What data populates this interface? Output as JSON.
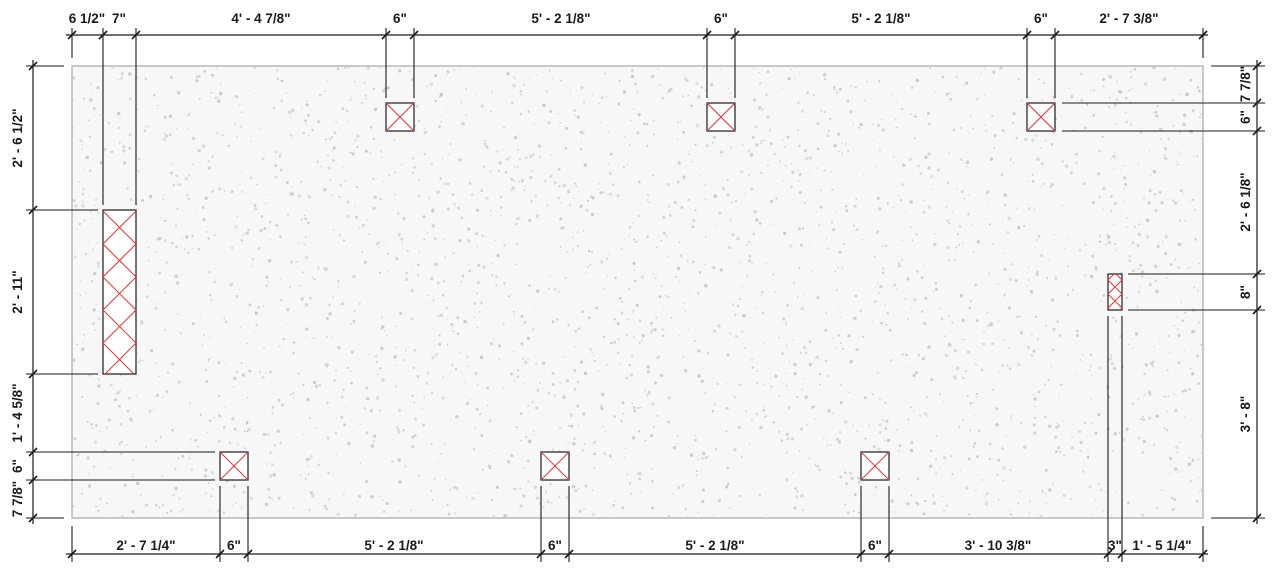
{
  "drawing": {
    "dimensions": {
      "top": [
        "6 1/2\"",
        "7\"",
        "4' - 4 7/8\"",
        "6\"",
        "5' - 2 1/8\"",
        "6\"",
        "5' - 2 1/8\"",
        "6\"",
        "2' - 7 3/8\""
      ],
      "bottom": [
        "2' - 7 1/4\"",
        "6\"",
        "5' - 2 1/8\"",
        "6\"",
        "5' - 2 1/8\"",
        "6\"",
        "3' - 10 3/8\"",
        "3\"",
        "1' - 5 1/4\""
      ],
      "left": [
        "2' - 6 1/2\"",
        "2' - 11\"",
        "1' - 4 5/8\"",
        "6\"",
        "7 7/8\""
      ],
      "right": [
        "7 7/8\"",
        "6\"",
        "2' - 6 1/8\"",
        "8\"",
        "3' - 8\""
      ]
    },
    "colors": {
      "slab_fill": "#f7f7f7",
      "slab_edge": "#b8b8b8",
      "speckle": "#c9c9c9",
      "hatch": "#e23b3b",
      "line": "#1a1a1a"
    }
  }
}
